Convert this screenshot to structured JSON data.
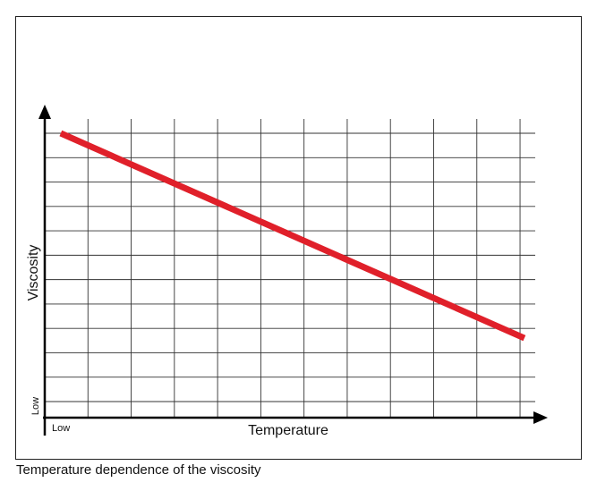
{
  "chart_data": {
    "type": "line",
    "x_label": "Temperature",
    "y_label": "Viscosity",
    "x_low_label": "Low",
    "y_low_label": "Low",
    "caption": "Temperature dependence of the viscosity",
    "x": [
      0.37,
      11.1
    ],
    "values": [
      11.0,
      2.6
    ],
    "color": "#e0202a",
    "xlim": [
      0,
      11.6
    ],
    "ylim": [
      -0.66,
      12.1
    ],
    "xticks": [
      1,
      2,
      3,
      4,
      5,
      6,
      7,
      8,
      9,
      10,
      11
    ],
    "yticks": [
      0,
      1,
      2,
      3,
      4,
      5,
      6,
      7,
      8,
      9,
      10,
      11
    ],
    "grid": true
  }
}
